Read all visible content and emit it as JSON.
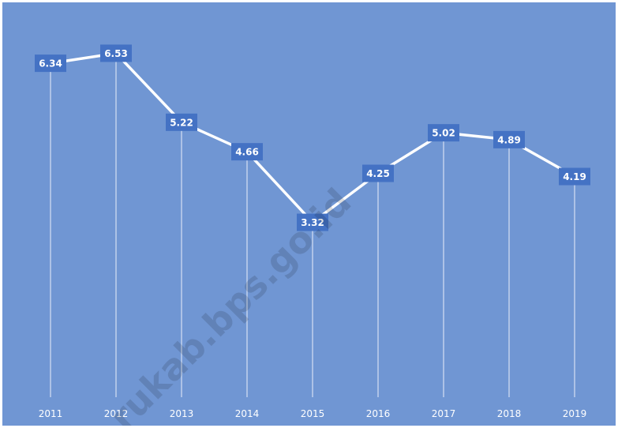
{
  "chart_data": {
    "type": "line",
    "categories": [
      "2011",
      "2012",
      "2013",
      "2014",
      "2015",
      "2016",
      "2017",
      "2018",
      "2019"
    ],
    "values": [
      6.34,
      6.53,
      5.22,
      4.66,
      3.32,
      4.25,
      5.02,
      4.89,
      4.19
    ],
    "title": "",
    "xlabel": "",
    "ylabel": "",
    "ylim": [
      0,
      7.3
    ],
    "grid": false,
    "data_labels": true,
    "colors": {
      "background": "#7096d3",
      "line": "#ffffff",
      "label_box": "#4472c4",
      "drop_lines": "#ffffff"
    }
  },
  "watermark": "rukab.bps.go.id"
}
